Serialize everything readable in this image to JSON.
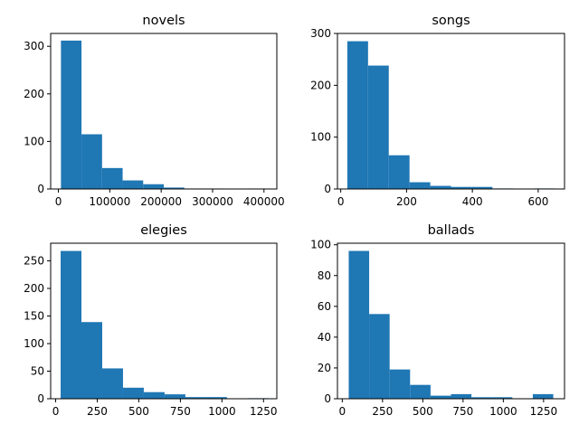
{
  "chart_data": [
    {
      "type": "bar",
      "title": "novels",
      "color": "#1f77b4",
      "xlim": [
        -15000,
        425000
      ],
      "ylim": [
        0,
        327
      ],
      "bin_edges": [
        5000,
        45000,
        85000,
        125000,
        165000,
        205000,
        245000,
        285000,
        325000,
        365000,
        405000
      ],
      "counts": [
        312,
        115,
        44,
        18,
        10,
        3,
        1,
        1,
        0,
        1
      ],
      "x_ticks": [
        0,
        100000,
        200000,
        300000,
        400000
      ],
      "x_tick_labels": [
        "0",
        "100000",
        "200000",
        "300000",
        "400000"
      ],
      "y_ticks": [
        0,
        100,
        200,
        300
      ],
      "y_tick_labels": [
        "0",
        "100",
        "200",
        "300"
      ]
    },
    {
      "type": "bar",
      "title": "songs",
      "color": "#1f77b4",
      "xlim": [
        -10,
        680
      ],
      "ylim": [
        0,
        300
      ],
      "bin_edges": [
        20,
        83,
        146,
        209,
        272,
        335,
        398,
        461,
        524,
        587,
        650
      ],
      "counts": [
        285,
        238,
        65,
        13,
        6,
        4,
        4,
        1,
        0,
        1
      ],
      "x_ticks": [
        0,
        200,
        400,
        600
      ],
      "x_tick_labels": [
        "0",
        "200",
        "400",
        "600"
      ],
      "y_ticks": [
        0,
        100,
        200,
        300
      ],
      "y_tick_labels": [
        "0",
        "100",
        "200",
        "300"
      ]
    },
    {
      "type": "bar",
      "title": "elegies",
      "color": "#1f77b4",
      "xlim": [
        -30,
        1330
      ],
      "ylim": [
        0,
        282
      ],
      "bin_edges": [
        30,
        155,
        280,
        405,
        530,
        655,
        780,
        905,
        1030,
        1155,
        1280
      ],
      "counts": [
        268,
        139,
        55,
        20,
        12,
        8,
        3,
        3,
        0,
        1
      ],
      "x_ticks": [
        0,
        250,
        500,
        750,
        1000,
        1250
      ],
      "x_tick_labels": [
        "0",
        "250",
        "500",
        "750",
        "1000",
        "1250"
      ],
      "y_ticks": [
        0,
        50,
        100,
        150,
        200,
        250
      ],
      "y_tick_labels": [
        "0",
        "50",
        "100",
        "150",
        "200",
        "250"
      ]
    },
    {
      "type": "bar",
      "title": "ballads",
      "color": "#1f77b4",
      "xlim": [
        -30,
        1380
      ],
      "ylim": [
        0,
        101
      ],
      "bin_edges": [
        40,
        167,
        294,
        421,
        548,
        675,
        802,
        929,
        1056,
        1183,
        1310
      ],
      "counts": [
        96,
        55,
        19,
        9,
        2,
        3,
        1,
        1,
        0,
        3
      ],
      "x_ticks": [
        0,
        250,
        500,
        750,
        1000,
        1250
      ],
      "x_tick_labels": [
        "0",
        "250",
        "500",
        "750",
        "1000",
        "1250"
      ],
      "y_ticks": [
        0,
        20,
        40,
        60,
        80,
        100
      ],
      "y_tick_labels": [
        "0",
        "20",
        "40",
        "60",
        "80",
        "100"
      ]
    }
  ]
}
